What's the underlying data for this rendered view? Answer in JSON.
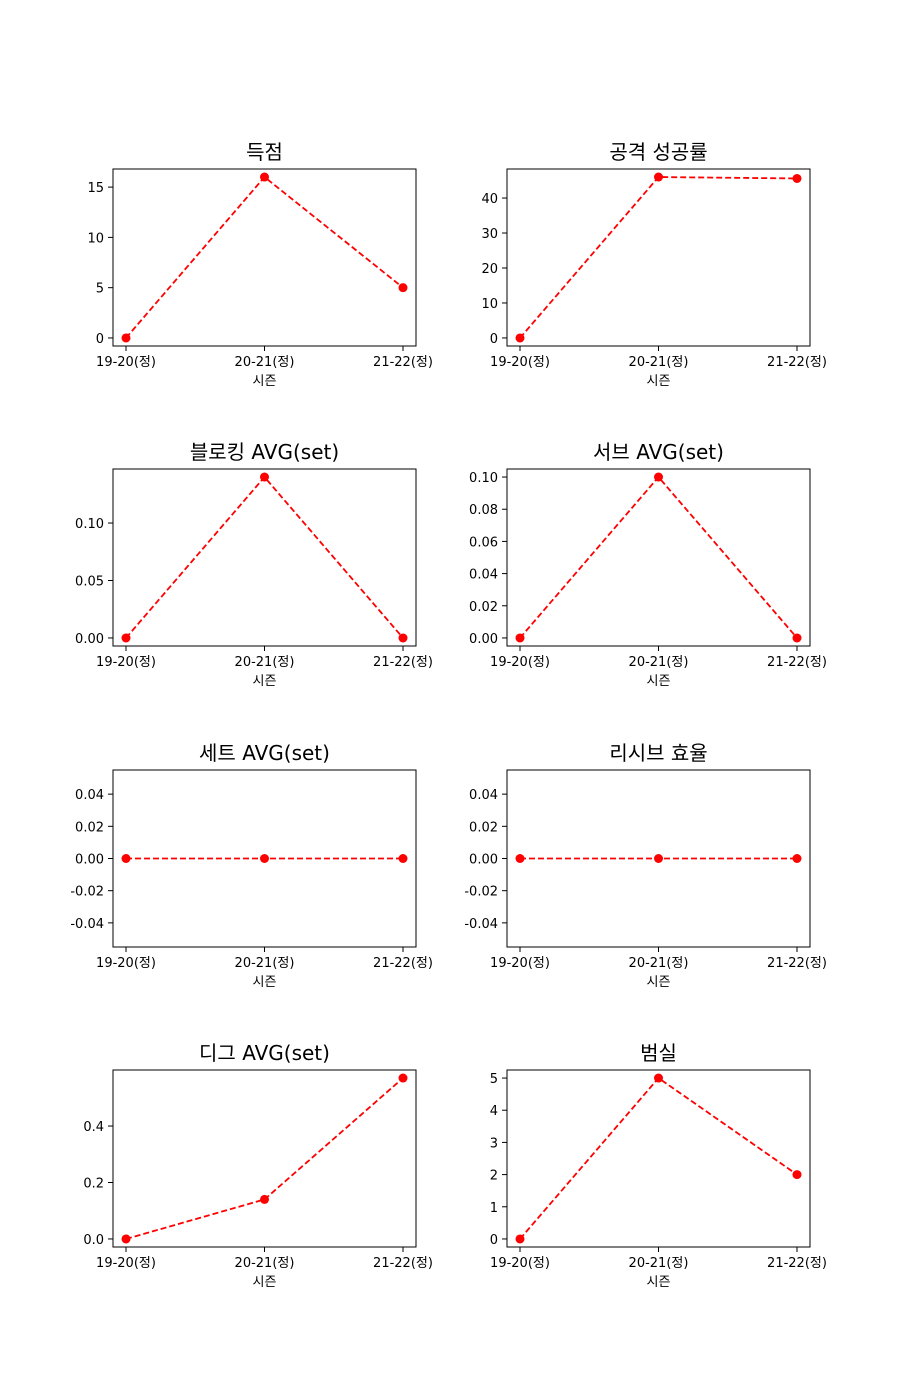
{
  "chart_data": [
    {
      "type": "line",
      "title": "득점",
      "xlabel": "시즌",
      "ylabel": "",
      "categories": [
        "19-20(정)",
        "20-21(정)",
        "21-22(정)"
      ],
      "values": [
        0,
        16,
        5
      ],
      "ylim": [
        -0.8,
        16.8
      ],
      "yticks": [
        0,
        5,
        10,
        15
      ],
      "ytick_labels": [
        "0",
        "5",
        "10",
        "15"
      ],
      "color": "#ff0000",
      "linestyle": "dashed",
      "marker": "circle",
      "grid": false
    },
    {
      "type": "line",
      "title": "공격 성공률",
      "xlabel": "시즌",
      "ylabel": "",
      "categories": [
        "19-20(정)",
        "20-21(정)",
        "21-22(정)"
      ],
      "values": [
        0,
        46,
        45.6
      ],
      "ylim": [
        -2.3,
        48.3
      ],
      "yticks": [
        0,
        10,
        20,
        30,
        40
      ],
      "ytick_labels": [
        "0",
        "10",
        "20",
        "30",
        "40"
      ],
      "color": "#ff0000",
      "linestyle": "dashed",
      "marker": "circle",
      "grid": false
    },
    {
      "type": "line",
      "title": "블로킹 AVG(set)",
      "xlabel": "시즌",
      "ylabel": "",
      "categories": [
        "19-20(정)",
        "20-21(정)",
        "21-22(정)"
      ],
      "values": [
        0,
        0.14,
        0
      ],
      "ylim": [
        -0.007,
        0.147
      ],
      "yticks": [
        0,
        0.05,
        0.1
      ],
      "ytick_labels": [
        "0.00",
        "0.05",
        "0.10"
      ],
      "color": "#ff0000",
      "linestyle": "dashed",
      "marker": "circle",
      "grid": false
    },
    {
      "type": "line",
      "title": "서브 AVG(set)",
      "xlabel": "시즌",
      "ylabel": "",
      "categories": [
        "19-20(정)",
        "20-21(정)",
        "21-22(정)"
      ],
      "values": [
        0,
        0.1,
        0
      ],
      "ylim": [
        -0.005,
        0.105
      ],
      "yticks": [
        0,
        0.02,
        0.04,
        0.06,
        0.08,
        0.1
      ],
      "ytick_labels": [
        "0.00",
        "0.02",
        "0.04",
        "0.06",
        "0.08",
        "0.10"
      ],
      "color": "#ff0000",
      "linestyle": "dashed",
      "marker": "circle",
      "grid": false
    },
    {
      "type": "line",
      "title": "세트 AVG(set)",
      "xlabel": "시즌",
      "ylabel": "",
      "categories": [
        "19-20(정)",
        "20-21(정)",
        "21-22(정)"
      ],
      "values": [
        0,
        0,
        0
      ],
      "ylim": [
        -0.055,
        0.055
      ],
      "yticks": [
        -0.04,
        -0.02,
        0,
        0.02,
        0.04
      ],
      "ytick_labels": [
        "-0.04",
        "-0.02",
        "0.00",
        "0.02",
        "0.04"
      ],
      "color": "#ff0000",
      "linestyle": "dashed",
      "marker": "circle",
      "grid": false
    },
    {
      "type": "line",
      "title": "리시브 효율",
      "xlabel": "시즌",
      "ylabel": "",
      "categories": [
        "19-20(정)",
        "20-21(정)",
        "21-22(정)"
      ],
      "values": [
        0,
        0,
        0
      ],
      "ylim": [
        -0.055,
        0.055
      ],
      "yticks": [
        -0.04,
        -0.02,
        0,
        0.02,
        0.04
      ],
      "ytick_labels": [
        "-0.04",
        "-0.02",
        "0.00",
        "0.02",
        "0.04"
      ],
      "color": "#ff0000",
      "linestyle": "dashed",
      "marker": "circle",
      "grid": false
    },
    {
      "type": "line",
      "title": "디그 AVG(set)",
      "xlabel": "시즌",
      "ylabel": "",
      "categories": [
        "19-20(정)",
        "20-21(정)",
        "21-22(정)"
      ],
      "values": [
        0,
        0.14,
        0.57
      ],
      "ylim": [
        -0.0285,
        0.5985
      ],
      "yticks": [
        0,
        0.2,
        0.4
      ],
      "ytick_labels": [
        "0.0",
        "0.2",
        "0.4"
      ],
      "color": "#ff0000",
      "linestyle": "dashed",
      "marker": "circle",
      "grid": false
    },
    {
      "type": "line",
      "title": "범실",
      "xlabel": "시즌",
      "ylabel": "",
      "categories": [
        "19-20(정)",
        "20-21(정)",
        "21-22(정)"
      ],
      "values": [
        0,
        5,
        2
      ],
      "ylim": [
        -0.25,
        5.25
      ],
      "yticks": [
        0,
        1,
        2,
        3,
        4,
        5
      ],
      "ytick_labels": [
        "0",
        "1",
        "2",
        "3",
        "4",
        "5"
      ],
      "color": "#ff0000",
      "linestyle": "dashed",
      "marker": "circle",
      "grid": false
    }
  ]
}
